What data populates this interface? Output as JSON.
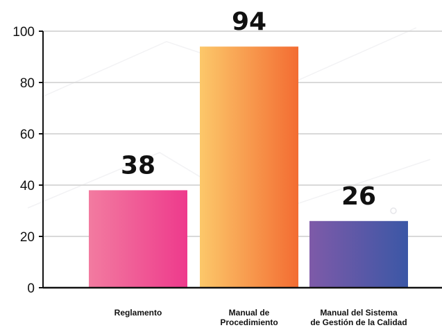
{
  "chart_data": {
    "type": "bar",
    "categories": [
      [
        "Reglamento"
      ],
      [
        "Manual de",
        "Procedimiento"
      ],
      [
        "Manual del Sistema",
        "de Gestión de la Calidad"
      ]
    ],
    "values": [
      38,
      94,
      26
    ],
    "data_labels": [
      "38",
      "94",
      "26"
    ],
    "yticks": [
      "0",
      "20",
      "40",
      "60",
      "80",
      "100"
    ],
    "ylim": [
      0,
      100
    ],
    "grid": true,
    "legend": "none",
    "title": "",
    "xlabel": "",
    "ylabel": "",
    "colors": [
      [
        "#f27ba0",
        "#ee3a8c"
      ],
      [
        "#fcc86a",
        "#f36c32"
      ],
      [
        "#7e5aa8",
        "#3b57a6"
      ]
    ]
  }
}
